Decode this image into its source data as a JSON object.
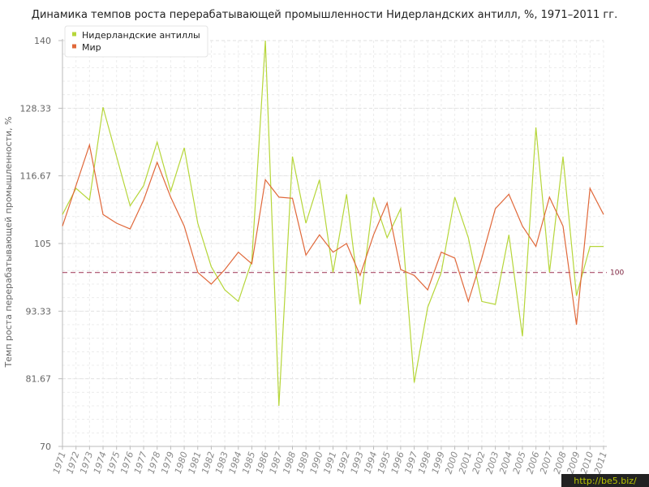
{
  "chart_data": {
    "type": "line",
    "title": "Динамика темпов роста перерабатывающей промышленности Нидерландских антилл, %, 1971–2011 гг.",
    "ylabel": "Темп роста перерабатывающей промышленности, %",
    "xlabel": "",
    "ylim": [
      70,
      140
    ],
    "yticks": [
      "70",
      "81.67",
      "93.33",
      "105",
      "116.67",
      "128.33",
      "140"
    ],
    "ytick_values": [
      70,
      81.67,
      93.33,
      105,
      116.67,
      128.33,
      140
    ],
    "x": [
      "1971",
      "1972",
      "1973",
      "1974",
      "1975",
      "1976",
      "1977",
      "1978",
      "1979",
      "1980",
      "1981",
      "1982",
      "1983",
      "1984",
      "1985",
      "1986",
      "1987",
      "1988",
      "1989",
      "1990",
      "1991",
      "1992",
      "1993",
      "1994",
      "1995",
      "1996",
      "1997",
      "1998",
      "1999",
      "2000",
      "2001",
      "2002",
      "2003",
      "2004",
      "2005",
      "2006",
      "2007",
      "2008",
      "2009",
      "2010",
      "2011"
    ],
    "series": [
      {
        "name": "Нидерландские антиллы",
        "color": "#b6d63a",
        "values": [
          110,
          114.5,
          112.5,
          128.5,
          120,
          111.5,
          115,
          122.5,
          114,
          121.5,
          108.5,
          101,
          97,
          95,
          102,
          140,
          77,
          120,
          108.5,
          116,
          100,
          113.5,
          94.5,
          113,
          106,
          111,
          81,
          94,
          100,
          113,
          106,
          95,
          94.5,
          106.5,
          89,
          125,
          100,
          120,
          96,
          104.5,
          104.5
        ]
      },
      {
        "name": "Мир",
        "color": "#e0683a",
        "values": [
          108,
          115,
          122,
          110,
          108.5,
          107.5,
          112.5,
          119,
          113,
          108,
          100,
          98,
          100.5,
          103.5,
          101.5,
          116,
          113,
          112.8,
          103,
          106.5,
          103.5,
          105,
          99.5,
          106.5,
          112,
          100.5,
          99.5,
          97,
          103.5,
          102.5,
          95,
          102.5,
          111,
          113.5,
          108,
          104.5,
          113,
          108,
          91,
          114.5,
          110
        ]
      }
    ],
    "reference_line": {
      "value": 100,
      "label": "100",
      "color": "#9c3050"
    },
    "grid": true,
    "legend": "top-left",
    "watermark": "http://be5.biz/"
  }
}
